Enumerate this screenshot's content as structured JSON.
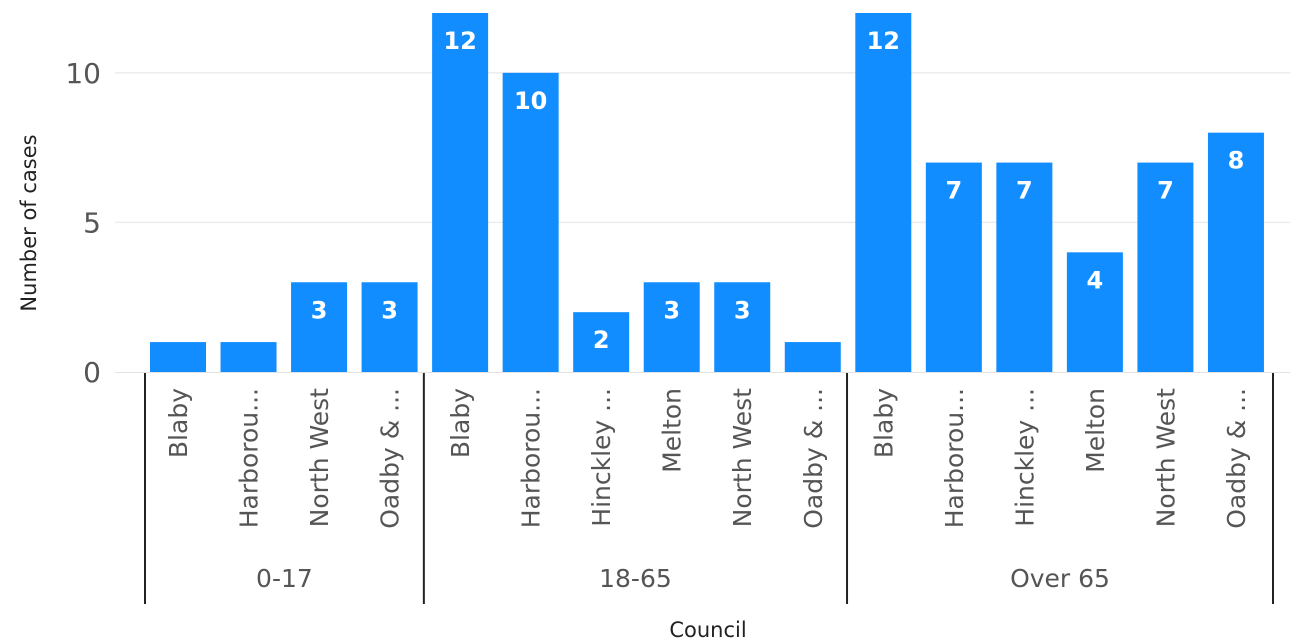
{
  "chart_data": {
    "type": "bar",
    "xlabel": "Council",
    "ylabel": "Number of cases",
    "ylim": [
      0,
      12
    ],
    "yticks": [
      0,
      5,
      10
    ],
    "grid": true,
    "bar_color": "#118DFF",
    "groups": [
      {
        "label": "0-17",
        "bars": [
          {
            "category": "Blaby",
            "value": 1,
            "data_label": ""
          },
          {
            "category": "Harborou...",
            "value": 1,
            "data_label": ""
          },
          {
            "category": "North West",
            "value": 3,
            "data_label": "3"
          },
          {
            "category": "Oadby & ...",
            "value": 3,
            "data_label": "3"
          }
        ]
      },
      {
        "label": "18-65",
        "bars": [
          {
            "category": "Blaby",
            "value": 12,
            "data_label": "12"
          },
          {
            "category": "Harborou...",
            "value": 10,
            "data_label": "10"
          },
          {
            "category": "Hinckley ...",
            "value": 2,
            "data_label": "2"
          },
          {
            "category": "Melton",
            "value": 3,
            "data_label": "3"
          },
          {
            "category": "North West",
            "value": 3,
            "data_label": "3"
          },
          {
            "category": "Oadby & ...",
            "value": 1,
            "data_label": ""
          }
        ]
      },
      {
        "label": "Over 65",
        "bars": [
          {
            "category": "Blaby",
            "value": 12,
            "data_label": "12"
          },
          {
            "category": "Harborou...",
            "value": 7,
            "data_label": "7"
          },
          {
            "category": "Hinckley ...",
            "value": 7,
            "data_label": "7"
          },
          {
            "category": "Melton",
            "value": 4,
            "data_label": "4"
          },
          {
            "category": "North West",
            "value": 7,
            "data_label": "7"
          },
          {
            "category": "Oadby & ...",
            "value": 8,
            "data_label": "8"
          }
        ]
      }
    ]
  }
}
